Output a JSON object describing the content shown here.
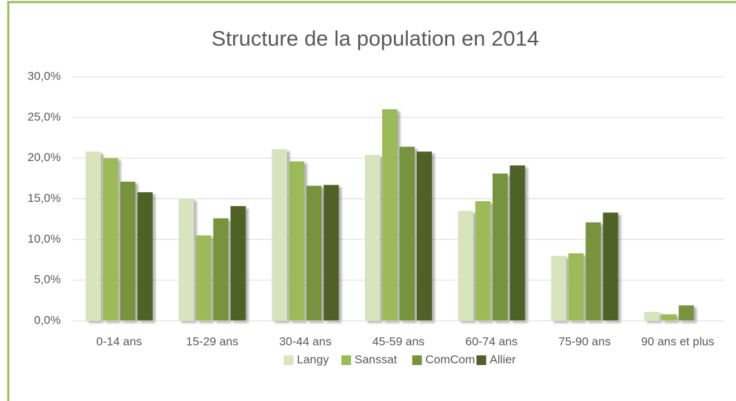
{
  "chart_data": {
    "type": "bar",
    "title": "Structure de la population en 2014",
    "categories": [
      "0-14 ans",
      "15-29 ans",
      "30-44 ans",
      "45-59 ans",
      "60-74 ans",
      "75-90 ans",
      "90 ans et plus"
    ],
    "series": [
      {
        "name": "Langy",
        "color": "#d7e4bd",
        "values": [
          20.8,
          15.0,
          21.1,
          20.4,
          13.5,
          8.0,
          1.1
        ]
      },
      {
        "name": "Sanssat",
        "color": "#9bbb59",
        "values": [
          20.0,
          10.5,
          19.6,
          26.0,
          14.7,
          8.3,
          0.8
        ]
      },
      {
        "name": "ComCom",
        "color": "#77933c",
        "values": [
          17.1,
          12.6,
          16.6,
          21.4,
          18.1,
          12.1,
          1.9
        ]
      },
      {
        "name": "Allier",
        "color": "#4f6228",
        "values": [
          15.8,
          14.1,
          16.7,
          20.8,
          19.1,
          13.3,
          0
        ]
      }
    ],
    "ylim": [
      0,
      30
    ],
    "yticks": [
      {
        "value": 0,
        "label": "0,0%"
      },
      {
        "value": 5,
        "label": "5,0%"
      },
      {
        "value": 10,
        "label": "10,0%"
      },
      {
        "value": 15,
        "label": "15,0%"
      },
      {
        "value": 20,
        "label": "20,0%"
      },
      {
        "value": 25,
        "label": "25,0%"
      },
      {
        "value": 30,
        "label": "30,0%"
      }
    ],
    "grid": true,
    "legend": "bottom"
  }
}
